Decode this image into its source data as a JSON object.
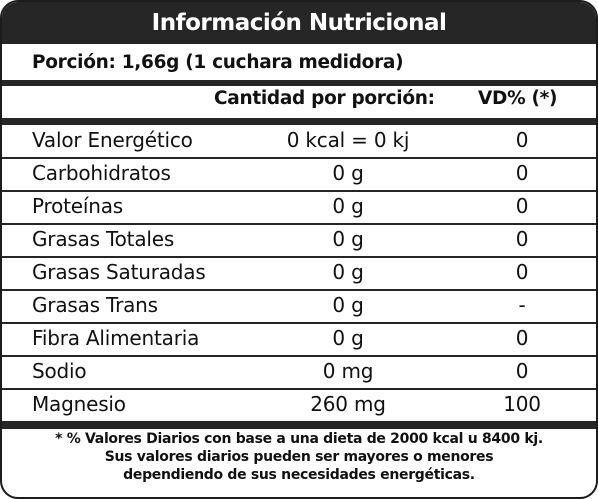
{
  "title": "Información Nutricional",
  "portion": "Porción: 1,66g (1 cuchara medidora)",
  "headers": {
    "amount": "Cantidad por porción:",
    "dv": "VD% (*)"
  },
  "rows": [
    {
      "nutrient": "Valor Energético",
      "amount": "0 kcal = 0 kj",
      "dv": "0"
    },
    {
      "nutrient": "Carbohidratos",
      "amount": "0 g",
      "dv": "0"
    },
    {
      "nutrient": "Proteínas",
      "amount": "0 g",
      "dv": "0"
    },
    {
      "nutrient": "Grasas Totales",
      "amount": "0 g",
      "dv": "0"
    },
    {
      "nutrient": "Grasas Saturadas",
      "amount": "0 g",
      "dv": "0"
    },
    {
      "nutrient": "Grasas Trans",
      "amount": "0 g",
      "dv": "-"
    },
    {
      "nutrient": "Fibra Alimentaria",
      "amount": "0 g",
      "dv": "0"
    },
    {
      "nutrient": "Sodio",
      "amount": "0 mg",
      "dv": "0"
    },
    {
      "nutrient": "Magnesio",
      "amount": "260 mg",
      "dv": "100"
    }
  ],
  "footnote": {
    "line1": "* % Valores Diarios con base a una dieta de 2000 kcal u 8400 kj.",
    "line2": "Sus valores diarios pueden ser mayores o menores",
    "line3": "dependiendo de sus necesidades energéticas."
  },
  "colors": {
    "bar": "#262626",
    "title_text": "#ffffff",
    "text": "#111111"
  }
}
